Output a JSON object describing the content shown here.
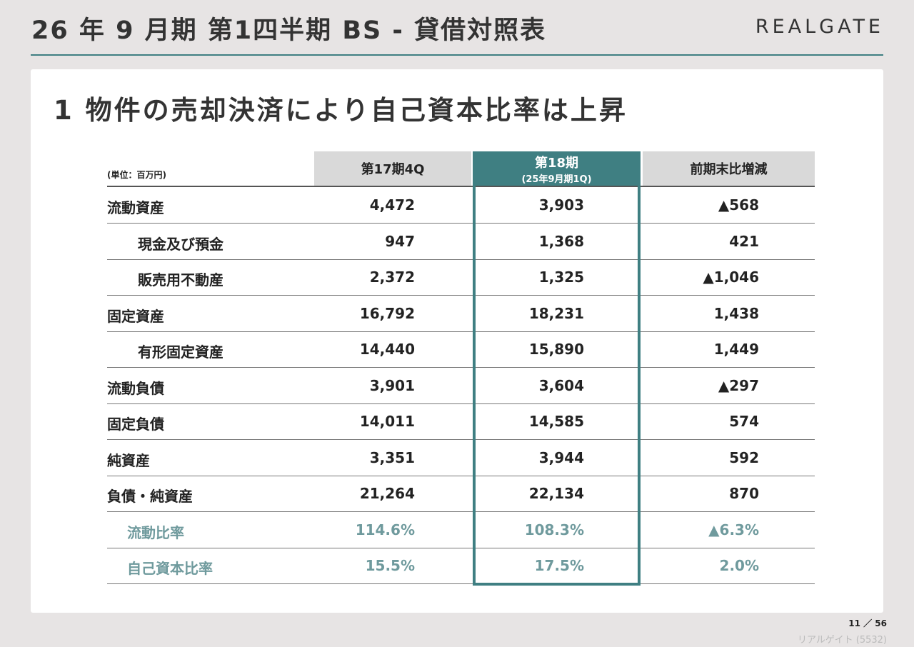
{
  "header": {
    "title": "26 年 9 月期 第1四半期 BS - 貸借対照表",
    "logo": "REALGATE"
  },
  "headline": "1 物件の売却決済により自己資本比率は上昇",
  "table": {
    "unit": "(単位：百万円)",
    "columns": [
      "第17期4Q",
      "第18期",
      "前期末比増減"
    ],
    "highlight_sublabel": "(25年9月期1Q)",
    "rows": [
      [
        "流動資産",
        "4,472",
        "3,903",
        "▲568"
      ],
      [
        "現金及び預金",
        "947",
        "1,368",
        "421"
      ],
      [
        "販売用不動産",
        "2,372",
        "1,325",
        "▲1,046"
      ],
      [
        "固定資産",
        "16,792",
        "18,231",
        "1,438"
      ],
      [
        "有形固定資産",
        "14,440",
        "15,890",
        "1,449"
      ],
      [
        "流動負債",
        "3,901",
        "3,604",
        "▲297"
      ],
      [
        "固定負債",
        "14,011",
        "14,585",
        "574"
      ],
      [
        "純資産",
        "3,351",
        "3,944",
        "592"
      ],
      [
        "負債・純資産",
        "21,264",
        "22,134",
        "870"
      ],
      [
        "流動比率",
        "114.6%",
        "108.3%",
        "▲6.3%"
      ],
      [
        "自己資本比率",
        "15.5%",
        "17.5%",
        "2.0%"
      ]
    ]
  },
  "footer": {
    "page": "11 ／ 56",
    "company": "リアルゲイト (5532)"
  }
}
